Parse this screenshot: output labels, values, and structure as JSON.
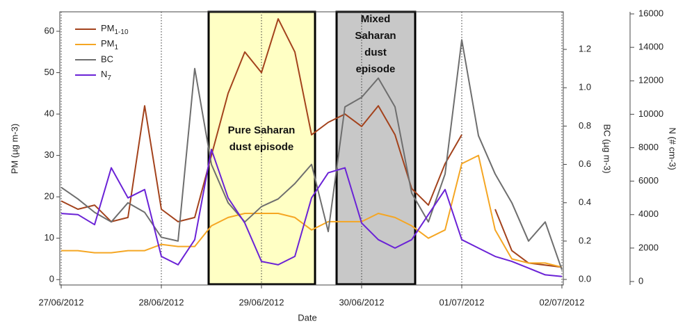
{
  "chart_data": {
    "type": "line",
    "xlabel": "Date",
    "ylabel": "PM (µg m-3)",
    "y2label": "BC (µg m-3)",
    "y3label": "N (# cm-3)",
    "x": [
      "2012-06-27T00:00",
      "2012-06-27T04:00",
      "2012-06-27T08:00",
      "2012-06-27T12:00",
      "2012-06-27T16:00",
      "2012-06-27T20:00",
      "2012-06-28T00:00",
      "2012-06-28T04:00",
      "2012-06-28T08:00",
      "2012-06-28T12:00",
      "2012-06-28T16:00",
      "2012-06-28T20:00",
      "2012-06-29T00:00",
      "2012-06-29T04:00",
      "2012-06-29T08:00",
      "2012-06-29T12:00",
      "2012-06-29T16:00",
      "2012-06-29T20:00",
      "2012-06-30T00:00",
      "2012-06-30T04:00",
      "2012-06-30T08:00",
      "2012-06-30T12:00",
      "2012-06-30T16:00",
      "2012-06-30T20:00",
      "2012-07-01T00:00",
      "2012-07-01T04:00",
      "2012-07-01T08:00",
      "2012-07-01T12:00",
      "2012-07-01T16:00",
      "2012-07-01T20:00",
      "2012-07-02T00:00"
    ],
    "xlim": [
      "2012-06-27T00:00",
      "2012-07-02T00:00"
    ],
    "xticks": [
      {
        "value": "2012-06-27T00:00",
        "label": "27/06/2012"
      },
      {
        "value": "2012-06-28T00:00",
        "label": "28/06/2012"
      },
      {
        "value": "2012-06-29T00:00",
        "label": "29/06/2012"
      },
      {
        "value": "2012-06-30T00:00",
        "label": "30/06/2012"
      },
      {
        "value": "2012-07-01T00:00",
        "label": "01/07/2012"
      },
      {
        "value": "2012-07-02T00:00",
        "label": "02/07/2012"
      }
    ],
    "ylim": [
      -1.3,
      64.7
    ],
    "yticks": [
      0,
      10,
      20,
      30,
      40,
      50,
      60
    ],
    "y2lim": [
      -0.029,
      1.396
    ],
    "y2ticks": [
      {
        "value": 0,
        "label": "0.0"
      },
      0.2,
      0.4,
      0.6,
      0.8,
      {
        "value": 1,
        "label": "1.0"
      },
      1.2
    ],
    "y3lim": [
      -208,
      16125
    ],
    "y3ticks": [
      0,
      2000,
      4000,
      6000,
      8000,
      10000,
      12000,
      14000,
      16000
    ],
    "grid": "x",
    "legend": "upper left",
    "series": [
      {
        "name": "PM1-10",
        "color": "#a3421c",
        "values": [
          19,
          17,
          18,
          14,
          15,
          42,
          17,
          14,
          15,
          30,
          45,
          55,
          50,
          63,
          55,
          35,
          38,
          40,
          37,
          42,
          35,
          22,
          18,
          28,
          35,
          null,
          17,
          7,
          4,
          3.5,
          3
        ]
      },
      {
        "name": "PM1",
        "color": "#f5a623",
        "values": [
          7,
          7,
          6.5,
          6.5,
          7,
          7,
          8.5,
          8,
          8,
          13,
          15,
          16,
          16,
          16,
          15,
          12,
          14,
          14,
          14,
          16,
          15,
          13,
          10,
          12,
          28,
          30,
          12,
          5,
          4,
          4,
          3
        ]
      },
      {
        "name": "BC",
        "color": "#6e6e6e",
        "axis": "y2",
        "values": [
          0.48,
          0.42,
          0.35,
          0.3,
          0.4,
          0.35,
          0.22,
          0.2,
          1.1,
          0.6,
          0.4,
          0.3,
          0.38,
          0.42,
          0.5,
          0.6,
          0.25,
          0.9,
          0.95,
          1.05,
          0.9,
          0.45,
          0.3,
          0.55,
          1.25,
          0.75,
          0.55,
          0.4,
          0.2,
          0.3,
          0.05
        ]
      },
      {
        "name": "N7",
        "color": "#6a22d6",
        "axis": "y3",
        "values": [
          4070,
          4000,
          3400,
          6800,
          5000,
          5500,
          1500,
          1000,
          2500,
          7900,
          5000,
          3500,
          1200,
          1000,
          1500,
          5000,
          6500,
          6800,
          3500,
          2500,
          2000,
          2500,
          4000,
          5500,
          2500,
          2000,
          1500,
          1200,
          800,
          400,
          300
        ]
      }
    ],
    "annotations": [
      {
        "text": [
          "Pure Saharan",
          "dust episode"
        ]
      },
      {
        "text": [
          "Mixed",
          "Saharan",
          "dust",
          "episode"
        ]
      }
    ]
  }
}
